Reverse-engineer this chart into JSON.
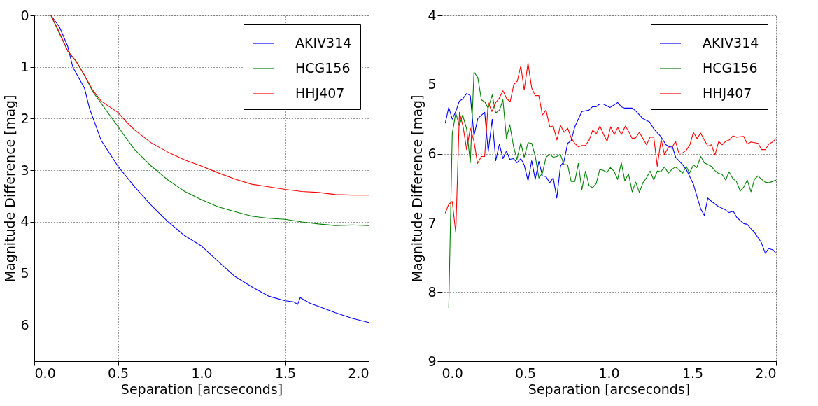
{
  "chart_data": [
    {
      "type": "line",
      "xlabel": "Separation [arcseconds]",
      "ylabel": "Magnitude Difference [mag]",
      "xlim": [
        0,
        2
      ],
      "xticks": [
        {
          "value": 0,
          "label": "0.0"
        },
        {
          "value": 0.5,
          "label": "0.5"
        },
        {
          "value": 1,
          "label": "1.0"
        },
        {
          "value": 1.5,
          "label": "1.5"
        },
        {
          "value": 2,
          "label": "2.0"
        }
      ],
      "ylim": [
        6.7,
        0
      ],
      "yticks": [
        0,
        1,
        2,
        3,
        4,
        5,
        6
      ],
      "grid": true,
      "legend": "top right",
      "line_style": "solid",
      "series": [
        {
          "name": "AKIV314",
          "color": "#0000ff",
          "x": [
            0.1,
            0.15,
            0.2,
            0.23,
            0.3,
            0.33,
            0.4,
            0.5,
            0.6,
            0.7,
            0.8,
            0.9,
            1.0,
            1.1,
            1.2,
            1.3,
            1.4,
            1.5,
            1.55,
            1.575,
            1.59,
            1.65,
            1.7,
            1.8,
            1.9,
            2.0
          ],
          "values": [
            0,
            0.22,
            0.6,
            1.0,
            1.41,
            1.8,
            2.42,
            2.92,
            3.32,
            3.68,
            4.0,
            4.27,
            4.47,
            4.77,
            5.06,
            5.26,
            5.44,
            5.53,
            5.55,
            5.6,
            5.47,
            5.58,
            5.64,
            5.76,
            5.87,
            5.95
          ]
        },
        {
          "name": "HCG156",
          "color": "#008000",
          "x": [
            0.1,
            0.15,
            0.2,
            0.25,
            0.3,
            0.35,
            0.4,
            0.45,
            0.5,
            0.55,
            0.6,
            0.7,
            0.8,
            0.9,
            1.0,
            1.1,
            1.2,
            1.3,
            1.4,
            1.5,
            1.6,
            1.7,
            1.8,
            1.9,
            2.0
          ],
          "values": [
            0,
            0.35,
            0.69,
            0.89,
            1.16,
            1.48,
            1.7,
            1.93,
            2.15,
            2.38,
            2.6,
            2.92,
            3.19,
            3.41,
            3.57,
            3.71,
            3.8,
            3.89,
            3.93,
            3.95,
            4.0,
            4.04,
            4.07,
            4.06,
            4.07
          ]
        },
        {
          "name": "HHJ407",
          "color": "#ff0000",
          "x": [
            0.1,
            0.15,
            0.2,
            0.25,
            0.3,
            0.35,
            0.4,
            0.5,
            0.55,
            0.6,
            0.7,
            0.8,
            0.9,
            1.0,
            1.1,
            1.2,
            1.3,
            1.4,
            1.5,
            1.6,
            1.7,
            1.8,
            1.9,
            2.0
          ],
          "values": [
            0,
            0.33,
            0.69,
            0.89,
            1.16,
            1.45,
            1.66,
            1.88,
            2.06,
            2.22,
            2.47,
            2.65,
            2.8,
            2.92,
            3.05,
            3.17,
            3.27,
            3.32,
            3.37,
            3.41,
            3.43,
            3.47,
            3.48,
            3.48
          ]
        }
      ]
    },
    {
      "type": "line",
      "xlabel": "Separation [arcseconds]",
      "ylabel": "Magnitude Difference [mag]",
      "xlim": [
        0,
        2
      ],
      "xticks": [
        {
          "value": 0,
          "label": "0.0"
        },
        {
          "value": 0.5,
          "label": "0.5"
        },
        {
          "value": 1,
          "label": "1.0"
        },
        {
          "value": 1.5,
          "label": "1.5"
        },
        {
          "value": 2,
          "label": "2.0"
        }
      ],
      "ylim": [
        9,
        4
      ],
      "yticks": [
        4,
        5,
        6,
        7,
        8,
        9
      ],
      "grid": true,
      "legend": "top right",
      "line_style": "solid",
      "series": [
        {
          "name": "AKIV314",
          "color": "#0000ff",
          "x": [
            0.022,
            0.043,
            0.064,
            0.085,
            0.106,
            0.126,
            0.15,
            0.172,
            0.194,
            0.217,
            0.258,
            0.279,
            0.303,
            0.324,
            0.346,
            0.367,
            0.388,
            0.408,
            0.431,
            0.451,
            0.474,
            0.494,
            0.517,
            0.539,
            0.56,
            0.582,
            0.603,
            0.625,
            0.646,
            0.668,
            0.689,
            0.711,
            0.732,
            0.754,
            0.775,
            0.797,
            0.839,
            0.881,
            0.903,
            0.925,
            0.946,
            0.967,
            1.008,
            1.053,
            1.075,
            1.096,
            1.14,
            1.161,
            1.203,
            1.244,
            1.269,
            1.311,
            1.342,
            1.363,
            1.381,
            1.4,
            1.442,
            1.464,
            1.506,
            1.529,
            1.55,
            1.571,
            1.592,
            1.615,
            1.654,
            1.696,
            1.719,
            1.744,
            1.765,
            1.807,
            1.828,
            1.849,
            1.869,
            1.911,
            1.936,
            1.956,
            1.981,
            2.0
          ],
          "values": [
            5.56,
            5.33,
            5.5,
            5.39,
            5.24,
            5.21,
            5.13,
            5.16,
            5.74,
            5.49,
            5.4,
            5.97,
            5.5,
            6.1,
            5.86,
            6.07,
            5.96,
            6.08,
            6.07,
            6.13,
            6.07,
            6.16,
            6.39,
            6.1,
            6.37,
            6.11,
            6.32,
            6.33,
            6.42,
            6.35,
            6.64,
            6.18,
            6.11,
            5.85,
            5.81,
            5.61,
            5.39,
            5.37,
            5.32,
            5.32,
            5.28,
            5.28,
            5.33,
            5.26,
            5.32,
            5.34,
            5.34,
            5.38,
            5.49,
            5.54,
            5.64,
            5.75,
            5.87,
            5.9,
            5.9,
            6.05,
            6.16,
            6.23,
            6.44,
            6.63,
            6.8,
            6.89,
            6.64,
            6.69,
            6.76,
            6.81,
            6.85,
            6.83,
            6.92,
            7.01,
            7.02,
            7.08,
            7.13,
            7.28,
            7.44,
            7.37,
            7.39,
            7.44
          ]
        },
        {
          "name": "HCG156",
          "color": "#008000",
          "x": [
            0.043,
            0.064,
            0.085,
            0.106,
            0.126,
            0.15,
            0.172,
            0.194,
            0.217,
            0.238,
            0.258,
            0.279,
            0.303,
            0.324,
            0.346,
            0.367,
            0.388,
            0.408,
            0.431,
            0.451,
            0.474,
            0.494,
            0.517,
            0.539,
            0.56,
            0.582,
            0.603,
            0.625,
            0.646,
            0.668,
            0.689,
            0.711,
            0.732,
            0.754,
            0.775,
            0.797,
            0.818,
            0.839,
            0.861,
            0.882,
            0.903,
            0.925,
            0.946,
            0.967,
            0.989,
            1.01,
            1.031,
            1.053,
            1.075,
            1.096,
            1.118,
            1.14,
            1.161,
            1.183,
            1.204,
            1.225,
            1.247,
            1.269,
            1.29,
            1.311,
            1.333,
            1.356,
            1.376,
            1.397,
            1.419,
            1.442,
            1.463,
            1.483,
            1.506,
            1.526,
            1.55,
            1.571,
            1.613,
            1.633,
            1.654,
            1.678,
            1.699,
            1.719,
            1.742,
            1.763,
            1.786,
            1.807,
            1.828,
            1.85,
            1.871,
            1.892,
            1.914,
            1.935,
            1.957,
            1.979,
            2.0
          ],
          "values": [
            8.23,
            5.71,
            5.41,
            5.59,
            5.44,
            5.64,
            6.13,
            4.82,
            4.9,
            5.22,
            5.25,
            5.34,
            5.15,
            5.41,
            5.37,
            5.22,
            5.78,
            5.58,
            5.9,
            6.08,
            5.84,
            6.05,
            5.84,
            5.85,
            6.03,
            6.35,
            6.28,
            6.05,
            6.01,
            6.05,
            6.04,
            6.01,
            6.16,
            6.16,
            6.4,
            6.4,
            6.14,
            6.52,
            6.25,
            6.46,
            6.49,
            6.43,
            6.23,
            6.24,
            6.27,
            6.2,
            6.25,
            6.37,
            6.13,
            6.39,
            6.29,
            6.55,
            6.41,
            6.56,
            6.42,
            6.35,
            6.25,
            6.38,
            6.25,
            6.26,
            6.19,
            6.28,
            6.23,
            6.19,
            6.23,
            6.28,
            6.18,
            6.28,
            6.16,
            6.2,
            6.04,
            6.13,
            6.18,
            6.24,
            6.28,
            6.3,
            6.38,
            6.26,
            6.36,
            6.4,
            6.54,
            6.48,
            6.38,
            6.55,
            6.37,
            6.32,
            6.37,
            6.41,
            6.42,
            6.4,
            6.38
          ]
        },
        {
          "name": "HHJ407",
          "color": "#ff0000",
          "x": [
            0.022,
            0.043,
            0.064,
            0.085,
            0.107,
            0.129,
            0.15,
            0.172,
            0.194,
            0.215,
            0.238,
            0.258,
            0.279,
            0.301,
            0.324,
            0.344,
            0.367,
            0.389,
            0.41,
            0.432,
            0.453,
            0.474,
            0.494,
            0.517,
            0.539,
            0.56,
            0.582,
            0.603,
            0.625,
            0.647,
            0.668,
            0.69,
            0.711,
            0.733,
            0.754,
            0.775,
            0.797,
            0.818,
            0.84,
            0.861,
            0.883,
            0.904,
            0.926,
            0.947,
            0.969,
            0.99,
            1.011,
            1.033,
            1.054,
            1.076,
            1.099,
            1.119,
            1.14,
            1.161,
            1.183,
            1.204,
            1.226,
            1.247,
            1.269,
            1.29,
            1.313,
            1.333,
            1.356,
            1.376,
            1.399,
            1.419,
            1.44,
            1.463,
            1.485,
            1.506,
            1.528,
            1.549,
            1.571,
            1.592,
            1.614,
            1.635,
            1.657,
            1.678,
            1.699,
            1.721,
            1.743,
            1.764,
            1.807,
            1.828,
            1.85,
            1.871,
            1.893,
            1.914,
            1.936,
            1.957,
            1.979,
            2.0
          ],
          "values": [
            6.86,
            6.73,
            6.69,
            7.14,
            5.4,
            5.61,
            5.94,
            5.63,
            5.82,
            6.14,
            6.04,
            6.04,
            5.26,
            5.39,
            5.26,
            5.2,
            5.09,
            5.2,
            5.25,
            5.0,
            4.95,
            4.73,
            5.08,
            4.69,
            5.05,
            5.16,
            5.16,
            5.44,
            5.37,
            5.61,
            5.6,
            5.8,
            5.59,
            5.69,
            5.63,
            5.77,
            5.85,
            5.9,
            5.88,
            5.88,
            5.8,
            5.66,
            5.71,
            5.6,
            5.72,
            5.82,
            5.61,
            5.72,
            5.62,
            5.72,
            5.6,
            5.68,
            5.78,
            5.77,
            5.69,
            5.78,
            5.87,
            5.76,
            5.76,
            6.18,
            5.79,
            6.01,
            5.91,
            5.92,
            5.82,
            5.99,
            5.99,
            5.95,
            5.87,
            5.69,
            5.78,
            5.7,
            5.8,
            5.89,
            5.87,
            6.02,
            5.82,
            5.87,
            5.82,
            5.8,
            5.74,
            5.76,
            5.75,
            5.86,
            5.83,
            5.84,
            5.85,
            5.94,
            5.94,
            5.86,
            5.83,
            5.78
          ]
        }
      ]
    }
  ]
}
